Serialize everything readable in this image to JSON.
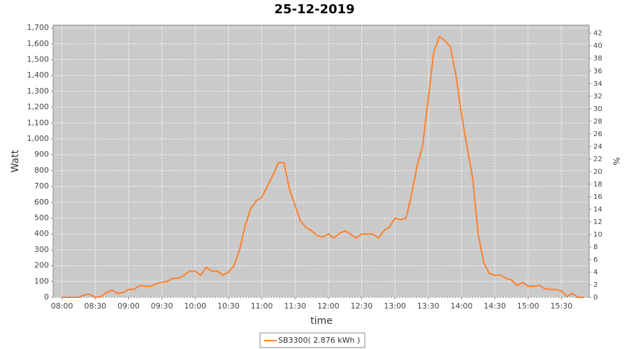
{
  "chart_data": {
    "type": "line",
    "title": "25-12-2019",
    "x_label": "time",
    "y_label": "Watt",
    "y2_label": "%",
    "x": [
      "08:00",
      "08:05",
      "08:10",
      "08:15",
      "08:20",
      "08:25",
      "08:30",
      "08:35",
      "08:40",
      "08:45",
      "08:50",
      "08:55",
      "09:00",
      "09:05",
      "09:10",
      "09:15",
      "09:20",
      "09:25",
      "09:30",
      "09:35",
      "09:40",
      "09:45",
      "09:50",
      "09:55",
      "10:00",
      "10:05",
      "10:10",
      "10:15",
      "10:20",
      "10:25",
      "10:30",
      "10:35",
      "10:40",
      "10:45",
      "10:50",
      "10:55",
      "11:00",
      "11:05",
      "11:10",
      "11:15",
      "11:20",
      "11:25",
      "11:30",
      "11:35",
      "11:40",
      "11:45",
      "11:50",
      "11:55",
      "12:00",
      "12:05",
      "12:10",
      "12:15",
      "12:20",
      "12:25",
      "12:30",
      "12:35",
      "12:40",
      "12:45",
      "12:50",
      "12:55",
      "13:00",
      "13:05",
      "13:10",
      "13:15",
      "13:20",
      "13:25",
      "13:30",
      "13:35",
      "13:40",
      "13:45",
      "13:50",
      "13:55",
      "14:00",
      "14:05",
      "14:10",
      "14:15",
      "14:20",
      "14:25",
      "14:30",
      "14:35",
      "14:40",
      "14:45",
      "14:50",
      "14:55",
      "15:00",
      "15:05",
      "15:10",
      "15:15",
      "15:20",
      "15:25",
      "15:30",
      "15:35",
      "15:40",
      "15:45",
      "15:50"
    ],
    "series": [
      {
        "name": "SB3300( 2.876 kWh )",
        "color": "#ff7f2a",
        "values": [
          0,
          0,
          0,
          0,
          15,
          20,
          0,
          5,
          30,
          45,
          25,
          30,
          50,
          50,
          75,
          70,
          70,
          85,
          95,
          100,
          120,
          120,
          140,
          165,
          165,
          140,
          190,
          165,
          165,
          140,
          160,
          200,
          300,
          450,
          560,
          610,
          630,
          700,
          770,
          850,
          850,
          680,
          580,
          480,
          440,
          420,
          390,
          380,
          400,
          375,
          405,
          420,
          400,
          375,
          400,
          400,
          400,
          375,
          420,
          445,
          500,
          490,
          500,
          650,
          830,
          960,
          1250,
          1550,
          1645,
          1620,
          1580,
          1400,
          1150,
          950,
          750,
          400,
          220,
          150,
          140,
          140,
          120,
          110,
          75,
          95,
          70,
          70,
          75,
          55,
          50,
          50,
          40,
          5,
          25,
          0,
          0
        ]
      }
    ],
    "xlim": [
      "07:52",
      "15:55"
    ],
    "xticks": [
      "08:00",
      "08:30",
      "09:00",
      "09:30",
      "10:00",
      "10:30",
      "11:00",
      "11:30",
      "12:00",
      "12:30",
      "13:00",
      "13:30",
      "14:00",
      "14:30",
      "15:00",
      "15:30"
    ],
    "ylim": [
      0,
      1718
    ],
    "yticks": [
      0,
      100,
      200,
      300,
      400,
      500,
      600,
      700,
      800,
      900,
      {
        "value": 1000,
        "label": "1,000"
      },
      {
        "value": 1100,
        "label": "1,100"
      },
      {
        "value": 1200,
        "label": "1,200"
      },
      {
        "value": 1300,
        "label": "1,300"
      },
      {
        "value": 1400,
        "label": "1,400"
      },
      {
        "value": 1500,
        "label": "1,500"
      },
      {
        "value": 1600,
        "label": "1,600"
      },
      {
        "value": 1700,
        "label": "1,700"
      }
    ],
    "y2lim": [
      0,
      43.3
    ],
    "y2ticks": [
      0,
      2,
      4,
      6,
      8,
      10,
      12,
      14,
      16,
      18,
      20,
      22,
      24,
      26,
      28,
      30,
      32,
      34,
      36,
      38,
      40,
      42
    ],
    "grid": true
  }
}
